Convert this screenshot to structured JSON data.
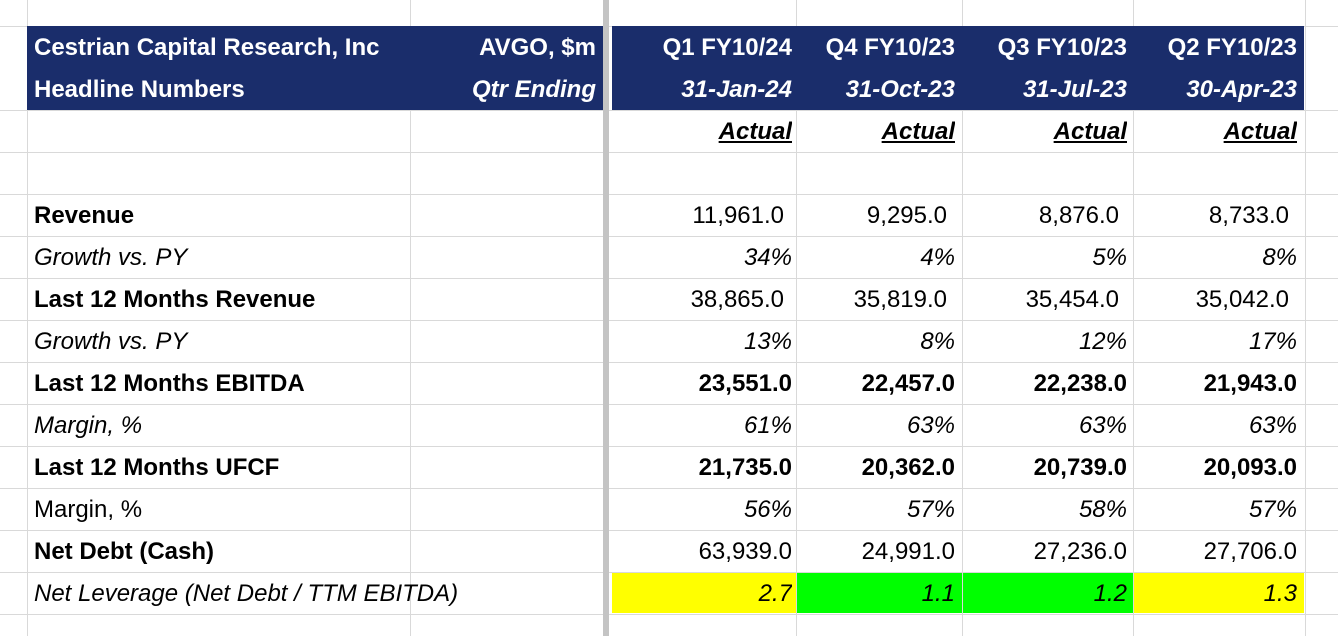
{
  "header": {
    "company": "Cestrian Capital Research, Inc",
    "subtitle": "Headline Numbers",
    "ticker": "AVGO, $m",
    "qtr_label": "Qtr Ending",
    "columns": [
      {
        "quarter": "Q1 FY10/24",
        "date": "31-Jan-24",
        "status": "Actual"
      },
      {
        "quarter": "Q4 FY10/23",
        "date": "31-Oct-23",
        "status": "Actual"
      },
      {
        "quarter": "Q3 FY10/23",
        "date": "31-Jul-23",
        "status": "Actual"
      },
      {
        "quarter": "Q2 FY10/23",
        "date": "30-Apr-23",
        "status": "Actual"
      }
    ]
  },
  "rows": [
    {
      "label": "Revenue",
      "values": [
        "11,961.0",
        "9,295.0",
        "8,876.0",
        "8,733.0"
      ]
    },
    {
      "label": "Growth vs. PY",
      "values": [
        "34%",
        "4%",
        "5%",
        "8%"
      ]
    },
    {
      "label": "Last 12 Months Revenue",
      "values": [
        "38,865.0",
        "35,819.0",
        "35,454.0",
        "35,042.0"
      ]
    },
    {
      "label": "Growth vs. PY",
      "values": [
        "13%",
        "8%",
        "12%",
        "17%"
      ]
    },
    {
      "label": "Last 12 Months EBITDA",
      "values": [
        "23,551.0",
        "22,457.0",
        "22,238.0",
        "21,943.0"
      ]
    },
    {
      "label": "Margin, %",
      "values": [
        "61%",
        "63%",
        "63%",
        "63%"
      ]
    },
    {
      "label": "Last 12 Months UFCF",
      "values": [
        "21,735.0",
        "20,362.0",
        "20,739.0",
        "20,093.0"
      ]
    },
    {
      "label": "Margin, %",
      "values": [
        "56%",
        "57%",
        "58%",
        "57%"
      ]
    },
    {
      "label": "Net Debt (Cash)",
      "values": [
        "63,939.0",
        "24,991.0",
        "27,236.0",
        "27,706.0"
      ]
    },
    {
      "label": "Net Leverage (Net Debt / TTM EBITDA)",
      "values": [
        "2.7",
        "1.1",
        "1.2",
        "1.3"
      ]
    }
  ],
  "colors": {
    "header_bg": "#1a2d6b",
    "header_text": "#ffffff",
    "highlight_yellow": "#ffff00",
    "highlight_green": "#00ff00",
    "gridline": "#d9d9d9"
  }
}
